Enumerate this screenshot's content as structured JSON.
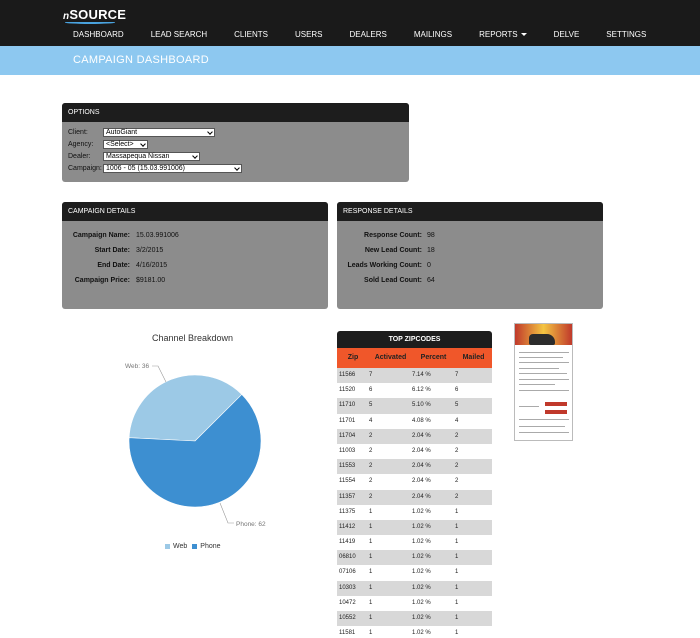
{
  "header": {
    "logo_prefix": "n",
    "logo_text": "SOURCE",
    "nav": [
      {
        "label": "DASHBOARD"
      },
      {
        "label": "LEAD SEARCH"
      },
      {
        "label": "CLIENTS"
      },
      {
        "label": "USERS"
      },
      {
        "label": "DEALERS"
      },
      {
        "label": "MAILINGS"
      },
      {
        "label": "REPORTS"
      },
      {
        "label": "DELVE"
      },
      {
        "label": "SETTINGS"
      }
    ]
  },
  "banner": {
    "title": "CAMPAIGN DASHBOARD"
  },
  "options": {
    "title": "OPTIONS",
    "client_label": "Client:",
    "client_value": "AutoGiant",
    "agency_label": "Agency:",
    "agency_value": "<Select>",
    "dealer_label": "Dealer:",
    "dealer_value": "Massapequa Nissan",
    "campaign_label": "Campaign:",
    "campaign_value": "1006 - 05 (15.03.991006)"
  },
  "campaign_details": {
    "title": "CAMPAIGN DETAILS",
    "name_label": "Campaign Name:",
    "name_value": "15.03.991006",
    "start_label": "Start Date:",
    "start_value": "3/2/2015",
    "end_label": "End Date:",
    "end_value": "4/16/2015",
    "price_label": "Campaign Price:",
    "price_value": "$9181.00"
  },
  "response_details": {
    "title": "RESPONSE DETAILS",
    "response_label": "Response Count:",
    "response_value": "98",
    "new_label": "New Lead Count:",
    "new_value": "18",
    "working_label": "Leads Working Count:",
    "working_value": "0",
    "sold_label": "Sold Lead Count:",
    "sold_value": "64"
  },
  "chart_data": {
    "type": "pie",
    "title": "Channel Breakdown",
    "categories": [
      "Web",
      "Phone"
    ],
    "values": [
      36,
      62
    ],
    "slice_labels": [
      "Web: 36",
      "Phone: 62"
    ],
    "colors": [
      "#9cc9e6",
      "#3d8fd1"
    ],
    "legend_position": "bottom"
  },
  "zipcodes": {
    "title": "TOP ZIPCODES",
    "columns": [
      "Zip",
      "Activated",
      "Percent",
      "Mailed"
    ],
    "rows": [
      [
        "11566",
        "7",
        "7.14 %",
        "7"
      ],
      [
        "11520",
        "6",
        "6.12 %",
        "6"
      ],
      [
        "11710",
        "5",
        "5.10 %",
        "5"
      ],
      [
        "11701",
        "4",
        "4.08 %",
        "4"
      ],
      [
        "11704",
        "2",
        "2.04 %",
        "2"
      ],
      [
        "11003",
        "2",
        "2.04 %",
        "2"
      ],
      [
        "11553",
        "2",
        "2.04 %",
        "2"
      ],
      [
        "11554",
        "2",
        "2.04 %",
        "2"
      ],
      [
        "11357",
        "2",
        "2.04 %",
        "2"
      ],
      [
        "11375",
        "1",
        "1.02 %",
        "1"
      ],
      [
        "11412",
        "1",
        "1.02 %",
        "1"
      ],
      [
        "11419",
        "1",
        "1.02 %",
        "1"
      ],
      [
        "06810",
        "1",
        "1.02 %",
        "1"
      ],
      [
        "07106",
        "1",
        "1.02 %",
        "1"
      ],
      [
        "10303",
        "1",
        "1.02 %",
        "1"
      ],
      [
        "10472",
        "1",
        "1.02 %",
        "1"
      ],
      [
        "10552",
        "1",
        "1.02 %",
        "1"
      ],
      [
        "11581",
        "1",
        "1.02 %",
        "1"
      ]
    ]
  },
  "mailer": {
    "icon": "mailer-thumbnail-image"
  }
}
